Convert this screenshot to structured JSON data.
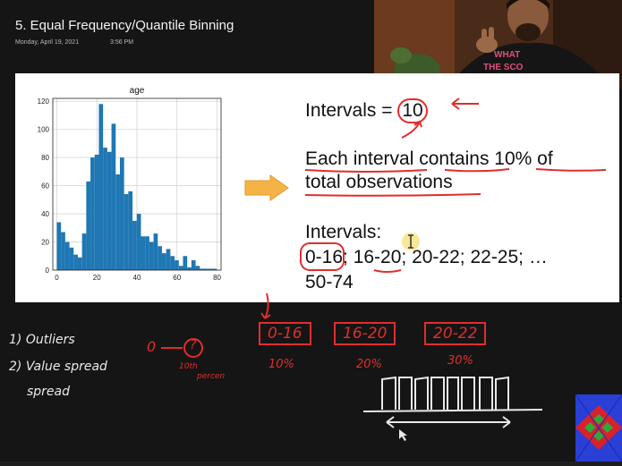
{
  "header": {
    "title": "5. Equal Frequency/Quantile Binning",
    "date": "Monday, April 19, 2021",
    "time": "3:56 PM"
  },
  "webcam": {
    "shirt_text_1": "WHAT",
    "shirt_text_2": "THE SCO"
  },
  "chart_data": {
    "type": "bar",
    "title": "age",
    "xlim": [
      -2,
      82
    ],
    "ylim": [
      0,
      122
    ],
    "x_ticks": [
      "0",
      "20",
      "40",
      "60",
      "80"
    ],
    "y_ticks": [
      "0",
      "20",
      "40",
      "60",
      "80",
      "100",
      "120"
    ],
    "grid": true,
    "bar_color": "#1f77b4",
    "bin_width": 2.1,
    "bin_start": 0,
    "values": [
      34,
      27,
      20,
      16,
      11,
      9,
      26,
      63,
      80,
      82,
      118,
      87,
      84,
      104,
      68,
      80,
      54,
      56,
      35,
      40,
      24,
      24,
      20,
      26,
      17,
      12,
      15,
      10,
      7,
      3,
      10,
      2,
      7,
      3,
      1,
      1,
      1,
      1
    ]
  },
  "slide": {
    "intervals_label": "Intervals = ",
    "intervals_value": "10",
    "each_interval_prefix": "Each interval contains 10% of",
    "each_interval_suffix": "total observations",
    "intervals_heading": "Intervals:",
    "intervals_list": "0-16; 16-20; 20-22; 22-25; …",
    "intervals_last": "50-74",
    "arrow_color": "#f5b347"
  },
  "annotations": {
    "note_1": "1) Outliers",
    "note_2": "2) Value spread",
    "note_2b": "spread",
    "zero": "0",
    "circle_value": "?",
    "tenth_label": "10th",
    "tenth_sub": "percen",
    "boxes": [
      "0-16",
      "16-20",
      "20-22"
    ],
    "percents": [
      "10%",
      "20%",
      "30%"
    ],
    "ink_red": "#e12d2d",
    "ink_white": "#e9e9e9"
  },
  "logo": {
    "colors": [
      "#2a3fd6",
      "#d9212c",
      "#2ea83c"
    ]
  }
}
